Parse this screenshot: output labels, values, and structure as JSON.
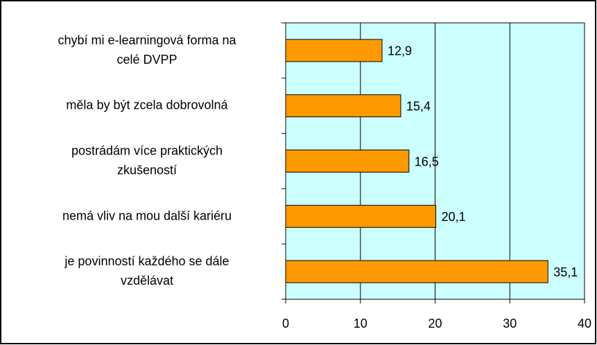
{
  "chart_data": {
    "type": "hbar",
    "categories": [
      "chybí mi e-learningová forma na\ncelé DVPP",
      "měla by být zcela dobrovolná",
      "postrádám více praktických\nzkušeností",
      "nemá vliv na mou další kariéru",
      "je povinností každého se dále\nvzdělávat"
    ],
    "values": [
      12.9,
      15.4,
      16.5,
      20.1,
      35.1
    ],
    "value_labels": [
      "12,9",
      "15,4",
      "16,5",
      "20,1",
      "35,1"
    ],
    "color": "#ff9900",
    "xlim": [
      0,
      40
    ],
    "xticks": [
      0,
      10,
      20,
      30,
      40
    ],
    "grid": true
  }
}
